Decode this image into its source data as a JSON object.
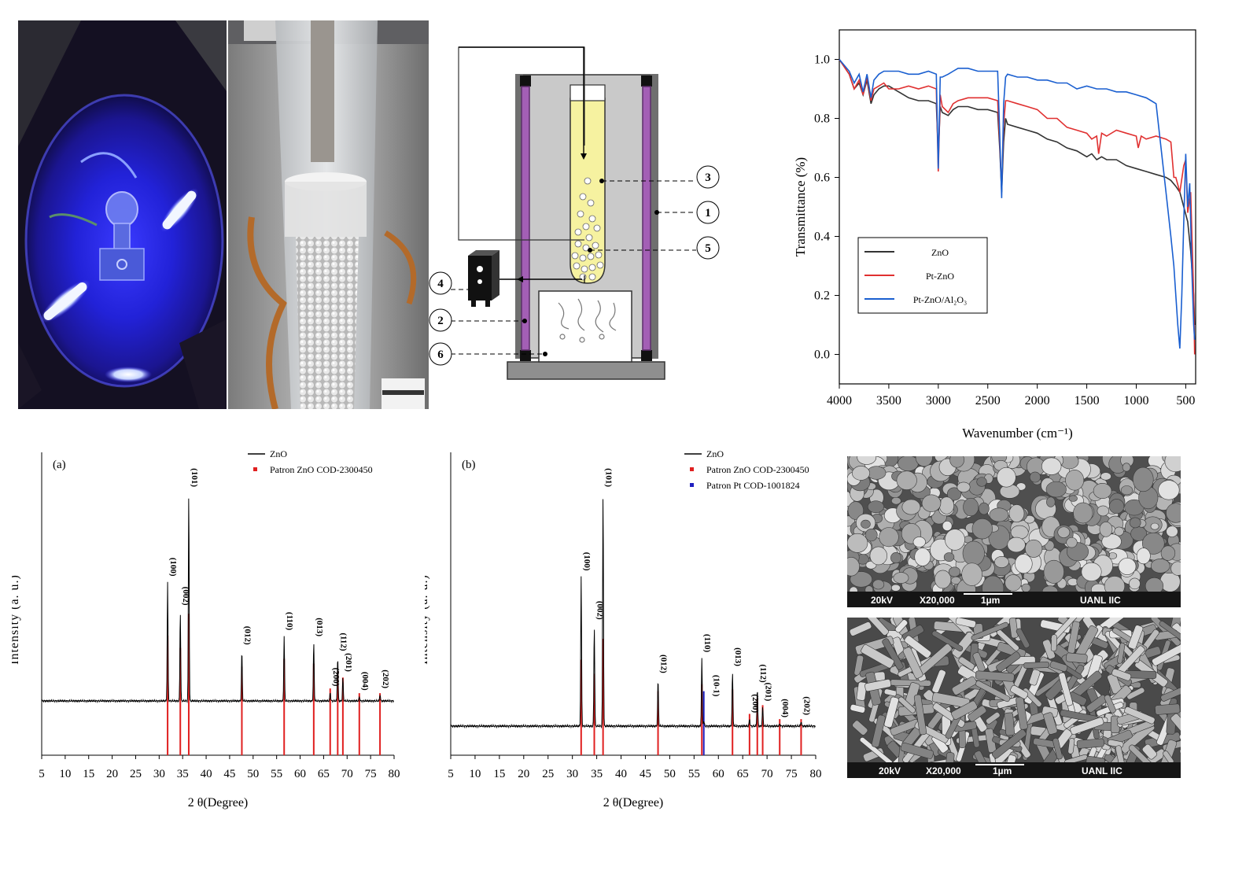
{
  "photos": {
    "photo_left": {
      "description_icon": "uv-reactor-photo"
    },
    "photo_right": {
      "description_icon": "packed-column-photo"
    }
  },
  "schematic": {
    "labels": [
      "1",
      "2",
      "3",
      "4",
      "5",
      "6"
    ]
  },
  "sem": {
    "top": {
      "voltage": "20kV",
      "magnification": "X20,000",
      "scale": "1µm",
      "lab": "UANL IIC"
    },
    "bottom": {
      "voltage": "20kV",
      "magnification": "X20,000",
      "scale": "1µm",
      "lab": "UANL IIC"
    }
  },
  "chart_data": [
    {
      "id": "ftir",
      "type": "line",
      "xlabel": "Wavenumber (cm⁻¹)",
      "ylabel": "Transmittance (%)",
      "xlim": [
        4000,
        400
      ],
      "ylim": [
        -0.1,
        1.1
      ],
      "xticks": [
        4000,
        3500,
        3000,
        2500,
        2000,
        1500,
        1000,
        500
      ],
      "yticks": [
        0.0,
        0.2,
        0.4,
        0.6,
        0.8,
        1.0
      ],
      "xtick_labels": [
        "4000",
        "3500",
        "3000",
        "2500",
        "2000",
        "1500",
        "1000",
        "500"
      ],
      "ytick_labels": [
        "0.0",
        "0.2",
        "0.4",
        "0.6",
        "0.8",
        "1.0"
      ],
      "legend_position": "middle-left",
      "series": [
        {
          "name": "ZnO",
          "color": "#333333",
          "x": [
            4000,
            3900,
            3850,
            3800,
            3760,
            3720,
            3680,
            3650,
            3600,
            3550,
            3500,
            3400,
            3300,
            3200,
            3100,
            3020,
            3000,
            2980,
            2960,
            2900,
            2850,
            2800,
            2700,
            2600,
            2500,
            2400,
            2380,
            2360,
            2340,
            2320,
            2300,
            2200,
            2100,
            2000,
            1900,
            1800,
            1700,
            1600,
            1500,
            1450,
            1400,
            1350,
            1300,
            1200,
            1100,
            1000,
            900,
            800,
            700,
            650,
            600,
            560,
            520,
            480,
            450,
            420,
            410
          ],
          "y": [
            1.0,
            0.95,
            0.9,
            0.92,
            0.88,
            0.93,
            0.85,
            0.88,
            0.9,
            0.91,
            0.91,
            0.89,
            0.87,
            0.86,
            0.86,
            0.85,
            0.68,
            0.84,
            0.82,
            0.81,
            0.83,
            0.84,
            0.84,
            0.83,
            0.83,
            0.82,
            0.7,
            0.55,
            0.72,
            0.8,
            0.78,
            0.77,
            0.76,
            0.75,
            0.73,
            0.72,
            0.7,
            0.69,
            0.67,
            0.68,
            0.66,
            0.67,
            0.66,
            0.66,
            0.64,
            0.63,
            0.62,
            0.61,
            0.6,
            0.59,
            0.57,
            0.55,
            0.5,
            0.45,
            0.35,
            0.2,
            0.1
          ]
        },
        {
          "name": "Pt-ZnO",
          "color": "#e03030",
          "x": [
            4000,
            3900,
            3850,
            3800,
            3760,
            3720,
            3680,
            3650,
            3600,
            3550,
            3500,
            3400,
            3300,
            3200,
            3100,
            3020,
            3000,
            2980,
            2960,
            2900,
            2850,
            2800,
            2700,
            2600,
            2500,
            2400,
            2380,
            2360,
            2340,
            2320,
            2300,
            2200,
            2100,
            2000,
            1900,
            1800,
            1700,
            1600,
            1500,
            1450,
            1400,
            1380,
            1350,
            1300,
            1200,
            1100,
            1000,
            980,
            950,
            900,
            800,
            700,
            650,
            620,
            600,
            560,
            520,
            500,
            480,
            450,
            420,
            410
          ],
          "y": [
            1.0,
            0.95,
            0.9,
            0.93,
            0.88,
            0.94,
            0.86,
            0.9,
            0.91,
            0.92,
            0.9,
            0.9,
            0.91,
            0.9,
            0.91,
            0.9,
            0.62,
            0.88,
            0.84,
            0.82,
            0.85,
            0.86,
            0.87,
            0.87,
            0.87,
            0.86,
            0.72,
            0.56,
            0.78,
            0.86,
            0.86,
            0.85,
            0.84,
            0.83,
            0.8,
            0.8,
            0.77,
            0.76,
            0.75,
            0.73,
            0.74,
            0.68,
            0.75,
            0.74,
            0.76,
            0.75,
            0.74,
            0.7,
            0.74,
            0.73,
            0.74,
            0.73,
            0.72,
            0.6,
            0.6,
            0.55,
            0.64,
            0.66,
            0.48,
            0.55,
            0.2,
            0.0
          ]
        },
        {
          "name": "Pt-ZnO/Al₂O₃",
          "color": "#1a5fd0",
          "x": [
            4000,
            3900,
            3850,
            3800,
            3760,
            3720,
            3680,
            3650,
            3600,
            3550,
            3500,
            3400,
            3300,
            3200,
            3100,
            3020,
            3000,
            2980,
            2960,
            2900,
            2850,
            2800,
            2700,
            2600,
            2500,
            2400,
            2380,
            2360,
            2340,
            2320,
            2300,
            2200,
            2100,
            2000,
            1900,
            1800,
            1700,
            1600,
            1500,
            1400,
            1300,
            1200,
            1100,
            1000,
            900,
            850,
            800,
            750,
            700,
            650,
            620,
            600,
            580,
            560,
            540,
            520,
            500,
            480,
            460,
            440,
            420,
            410
          ],
          "y": [
            1.0,
            0.96,
            0.92,
            0.95,
            0.89,
            0.95,
            0.87,
            0.93,
            0.95,
            0.96,
            0.96,
            0.96,
            0.95,
            0.95,
            0.96,
            0.95,
            0.63,
            0.94,
            0.94,
            0.95,
            0.96,
            0.97,
            0.97,
            0.96,
            0.96,
            0.96,
            0.75,
            0.53,
            0.85,
            0.94,
            0.95,
            0.94,
            0.94,
            0.93,
            0.93,
            0.92,
            0.92,
            0.9,
            0.91,
            0.9,
            0.9,
            0.89,
            0.89,
            0.88,
            0.87,
            0.86,
            0.85,
            0.7,
            0.55,
            0.4,
            0.3,
            0.2,
            0.1,
            0.02,
            0.2,
            0.45,
            0.68,
            0.5,
            0.58,
            0.3,
            0.1,
            0.05
          ]
        }
      ]
    },
    {
      "id": "xrd_a",
      "type": "line",
      "panel_label": "(a)",
      "xlabel": "2 θ(Degree)",
      "ylabel": "Intensity (a. u.)",
      "xlim": [
        5,
        80
      ],
      "xticks": [
        5,
        10,
        15,
        20,
        25,
        30,
        35,
        40,
        45,
        50,
        55,
        60,
        65,
        70,
        75,
        80
      ],
      "legend_position": "top-right",
      "legend": [
        {
          "name": "ZnO",
          "color": "#000000",
          "marker": "line"
        },
        {
          "name": "Patron ZnO COD-2300450",
          "color": "#e02020",
          "marker": "square"
        }
      ],
      "peaks": [
        {
          "x": 31.8,
          "intensity": 0.57,
          "label": "(100)",
          "ref": 0.42
        },
        {
          "x": 34.5,
          "intensity": 0.43,
          "label": "(002)",
          "ref": 0.34
        },
        {
          "x": 36.3,
          "intensity": 1.0,
          "label": "(101)",
          "ref": 0.56
        },
        {
          "x": 47.6,
          "intensity": 0.24,
          "label": "(012)",
          "ref": 0.22
        },
        {
          "x": 56.6,
          "intensity": 0.31,
          "label": "(110)",
          "ref": 0.27
        },
        {
          "x": 62.9,
          "intensity": 0.28,
          "label": "(013)",
          "ref": 0.24
        },
        {
          "x": 66.4,
          "intensity": 0.04,
          "label": "(200)",
          "ref": 0.08
        },
        {
          "x": 68.0,
          "intensity": 0.21,
          "label": "(112)",
          "ref": 0.19
        },
        {
          "x": 69.1,
          "intensity": 0.11,
          "label": "(201)",
          "ref": 0.15
        },
        {
          "x": 72.6,
          "intensity": 0.02,
          "label": "(004)",
          "ref": 0.05
        },
        {
          "x": 77.0,
          "intensity": 0.03,
          "label": "(202)",
          "ref": 0.05
        }
      ]
    },
    {
      "id": "xrd_b",
      "type": "line",
      "panel_label": "(b)",
      "xlabel": "2 θ(Degree)",
      "ylabel": "Intensity (a. u.)",
      "xlim": [
        5,
        80
      ],
      "xticks": [
        5,
        10,
        15,
        20,
        25,
        30,
        35,
        40,
        45,
        50,
        55,
        60,
        65,
        70,
        75,
        80
      ],
      "legend_position": "top-right",
      "legend": [
        {
          "name": "ZnO",
          "color": "#000000",
          "marker": "line"
        },
        {
          "name": "Patron ZnO COD-2300450",
          "color": "#e02020",
          "marker": "square"
        },
        {
          "name": "Patron Pt COD-1001824",
          "color": "#2020c0",
          "marker": "square"
        }
      ],
      "peaks": [
        {
          "x": 31.8,
          "intensity": 0.64,
          "label": "(100)",
          "ref": 0.38
        },
        {
          "x": 34.5,
          "intensity": 0.43,
          "label": "(002)",
          "ref": 0.3
        },
        {
          "x": 36.3,
          "intensity": 1.0,
          "label": "(101)",
          "ref": 0.5
        },
        {
          "x": 47.6,
          "intensity": 0.2,
          "label": "(012)",
          "ref": 0.2
        },
        {
          "x": 56.6,
          "intensity": 0.29,
          "label": "(110)",
          "ref": 0.24
        },
        {
          "x": 62.9,
          "intensity": 0.23,
          "label": "(013)",
          "ref": 0.21
        },
        {
          "x": 66.4,
          "intensity": 0.03,
          "label": "(200)",
          "ref": 0.07
        },
        {
          "x": 68.0,
          "intensity": 0.16,
          "label": "(112)",
          "ref": 0.16
        },
        {
          "x": 69.1,
          "intensity": 0.08,
          "label": "(201)",
          "ref": 0.12
        },
        {
          "x": 72.6,
          "intensity": 0.01,
          "label": "(004)",
          "ref": 0.04
        },
        {
          "x": 77.0,
          "intensity": 0.02,
          "label": "(202)",
          "ref": 0.04
        }
      ],
      "pt_peak": {
        "x": 57.0,
        "label": "(10-1)",
        "ref": 0.15
      }
    }
  ]
}
